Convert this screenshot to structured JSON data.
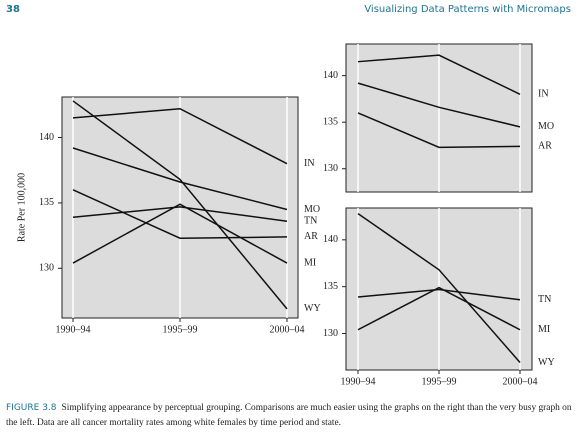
{
  "header": {
    "page_number": "38",
    "running_title": "Visualizing Data Patterns with Micromaps"
  },
  "caption": {
    "label": "FIGURE 3.8",
    "text": "Simplifying appearance by perceptual grouping. Comparisons are much easier using the graphs on the right than the very busy graph on the left. Data are all cancer mortality rates among white females by time period and state."
  },
  "chart_data": [
    {
      "type": "line",
      "y_label": "Rate Per 100,000",
      "categories": [
        "1990–94",
        "1995–99",
        "2000–04"
      ],
      "series": [
        {
          "name": "IN",
          "color": "#111111",
          "values": [
            141.5,
            142.2,
            138.0
          ]
        },
        {
          "name": "MO",
          "color": "#111111",
          "values": [
            139.2,
            136.6,
            134.5
          ]
        },
        {
          "name": "TN",
          "color": "#111111",
          "values": [
            133.9,
            134.7,
            133.6
          ]
        },
        {
          "name": "AR",
          "color": "#111111",
          "values": [
            136.0,
            132.3,
            132.4
          ]
        },
        {
          "name": "MI",
          "color": "#111111",
          "values": [
            130.4,
            134.9,
            130.4
          ]
        },
        {
          "name": "WY",
          "color": "#111111",
          "values": [
            142.8,
            136.8,
            126.9
          ]
        }
      ],
      "ylim": [
        126.2,
        143.1
      ],
      "yticks": [
        130,
        135,
        140
      ],
      "grid": true
    },
    {
      "type": "line",
      "categories": [
        null,
        null,
        null
      ],
      "series": [
        {
          "name": "IN",
          "color": "#111111",
          "values": [
            141.5,
            142.2,
            138.0
          ]
        },
        {
          "name": "MO",
          "color": "#111111",
          "values": [
            139.2,
            136.6,
            134.5
          ]
        },
        {
          "name": "AR",
          "color": "#111111",
          "values": [
            136.0,
            132.3,
            132.4
          ]
        }
      ],
      "ylim": [
        127.5,
        143.4
      ],
      "yticks": [
        130,
        135,
        140
      ],
      "grid": true
    },
    {
      "type": "line",
      "categories": [
        "1990–94",
        "1995–99",
        "2000–04"
      ],
      "series": [
        {
          "name": "TN",
          "color": "#111111",
          "values": [
            133.9,
            134.7,
            133.6
          ]
        },
        {
          "name": "MI",
          "color": "#111111",
          "values": [
            130.4,
            134.9,
            130.4
          ]
        },
        {
          "name": "WY",
          "color": "#111111",
          "values": [
            142.8,
            136.8,
            126.9
          ]
        }
      ],
      "ylim": [
        126.1,
        143.4
      ],
      "yticks": [
        130,
        135,
        140
      ],
      "grid": true
    }
  ]
}
